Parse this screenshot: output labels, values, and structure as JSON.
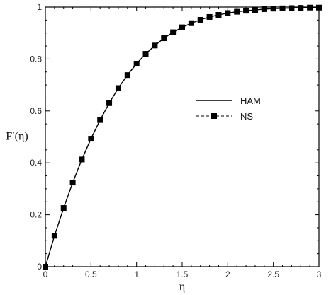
{
  "chart_data": {
    "type": "line",
    "xlabel": "η",
    "ylabel": "F′(η)",
    "xlim": [
      0,
      3
    ],
    "ylim": [
      0,
      1
    ],
    "x_ticks": [
      0,
      0.5,
      1,
      1.5,
      2,
      2.5,
      3
    ],
    "x_tick_labels": [
      "0",
      "0.5",
      "1",
      "1.5",
      "2",
      "2.5",
      "3"
    ],
    "y_ticks": [
      0,
      0.2,
      0.4,
      0.6,
      0.8,
      1
    ],
    "y_tick_labels": [
      "0",
      "0.2",
      "0.4",
      "0.6",
      "0.8",
      "1"
    ],
    "grid": false,
    "legend_position": "center-right",
    "series": [
      {
        "name": "HAM",
        "style": "solid",
        "color": "#000000",
        "x": [
          0,
          0.1,
          0.2,
          0.3,
          0.4,
          0.5,
          0.6,
          0.7,
          0.8,
          0.9,
          1.0,
          1.1,
          1.2,
          1.3,
          1.4,
          1.5,
          1.6,
          1.7,
          1.8,
          1.9,
          2.0,
          2.1,
          2.2,
          2.3,
          2.4,
          2.5,
          2.6,
          2.7,
          2.8,
          2.9,
          3.0
        ],
        "y": [
          0,
          0.119,
          0.226,
          0.324,
          0.413,
          0.493,
          0.565,
          0.63,
          0.688,
          0.738,
          0.782,
          0.82,
          0.852,
          0.88,
          0.903,
          0.922,
          0.938,
          0.951,
          0.962,
          0.97,
          0.977,
          0.982,
          0.986,
          0.989,
          0.992,
          0.994,
          0.995,
          0.996,
          0.997,
          0.998,
          0.998
        ]
      },
      {
        "name": "NS",
        "style": "dashed-square-markers",
        "color": "#000000",
        "x": [
          0,
          0.1,
          0.2,
          0.3,
          0.4,
          0.5,
          0.6,
          0.7,
          0.8,
          0.9,
          1.0,
          1.1,
          1.2,
          1.3,
          1.4,
          1.5,
          1.6,
          1.7,
          1.8,
          1.9,
          2.0,
          2.1,
          2.2,
          2.3,
          2.4,
          2.5,
          2.6,
          2.7,
          2.8,
          2.9,
          3.0
        ],
        "y": [
          0,
          0.119,
          0.226,
          0.324,
          0.413,
          0.493,
          0.565,
          0.63,
          0.688,
          0.738,
          0.782,
          0.82,
          0.852,
          0.88,
          0.903,
          0.922,
          0.938,
          0.951,
          0.962,
          0.97,
          0.977,
          0.982,
          0.986,
          0.989,
          0.992,
          0.994,
          0.995,
          0.996,
          0.997,
          0.998,
          0.998
        ]
      }
    ]
  }
}
